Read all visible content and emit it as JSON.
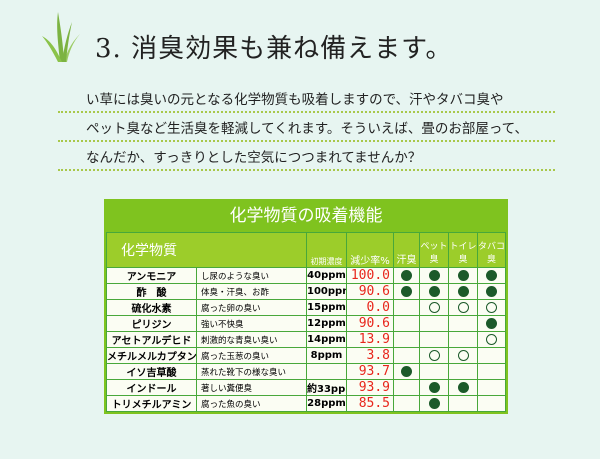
{
  "heading": "3.  消臭効果も兼ね備えます。",
  "paragraph": [
    "い草には臭いの元となる化学物質も吸着しますので、汗やタバコ臭や",
    "ペット臭など生活臭を軽減してくれます。そういえば、畳のお部屋って、",
    "なんだか、すっきりとした空気につつまれてませんか？"
  ],
  "table": {
    "title": "化学物質の吸着機能",
    "headers": [
      "化学物質",
      "",
      "初期濃度",
      "減少率%",
      "汗臭",
      "ペット臭",
      "トイレ臭",
      "タバコ臭"
    ],
    "rows": [
      {
        "name": "アンモニア",
        "desc": "し尿のような臭い",
        "conc": "40ppm",
        "rate": "100.0",
        "marks": [
          "filled",
          "filled",
          "filled",
          "filled"
        ]
      },
      {
        "name": "酢　酸",
        "desc": "体臭・汗臭、お酢",
        "conc": "100ppm",
        "rate": "90.6",
        "marks": [
          "filled",
          "filled",
          "filled",
          "filled"
        ]
      },
      {
        "name": "硫化水素",
        "desc": "腐った卵の臭い",
        "conc": "15ppm",
        "rate": "0.0",
        "marks": [
          "",
          "open",
          "open",
          "open"
        ]
      },
      {
        "name": "ピリジン",
        "desc": "強い不快臭",
        "conc": "12ppm",
        "rate": "90.6",
        "marks": [
          "",
          "",
          "",
          "filled"
        ]
      },
      {
        "name": "アセトアルデヒド",
        "desc": "刺激的な青臭い臭い",
        "conc": "14ppm",
        "rate": "13.9",
        "marks": [
          "",
          "",
          "",
          "open"
        ]
      },
      {
        "name": "メチルメルカプタン",
        "desc": "腐った玉葱の臭い",
        "conc": "8ppm",
        "rate": "3.8",
        "marks": [
          "",
          "open",
          "open",
          ""
        ]
      },
      {
        "name": "イソ吉草酸",
        "desc": "蒸れた靴下の様な臭い",
        "conc": "",
        "rate": "93.7",
        "marks": [
          "filled",
          "",
          "",
          ""
        ]
      },
      {
        "name": "インドール",
        "desc": "著しい糞便臭",
        "conc": "約33ppm",
        "rate": "93.9",
        "marks": [
          "",
          "filled",
          "filled",
          ""
        ]
      },
      {
        "name": "トリメチルアミン",
        "desc": "腐った魚の臭い",
        "conc": "28ppm",
        "rate": "85.5",
        "marks": [
          "",
          "filled",
          "",
          ""
        ]
      }
    ]
  },
  "colors": {
    "accent": "#7fc31f",
    "rate": "#e8261c",
    "mark": "#1c5a2a"
  }
}
